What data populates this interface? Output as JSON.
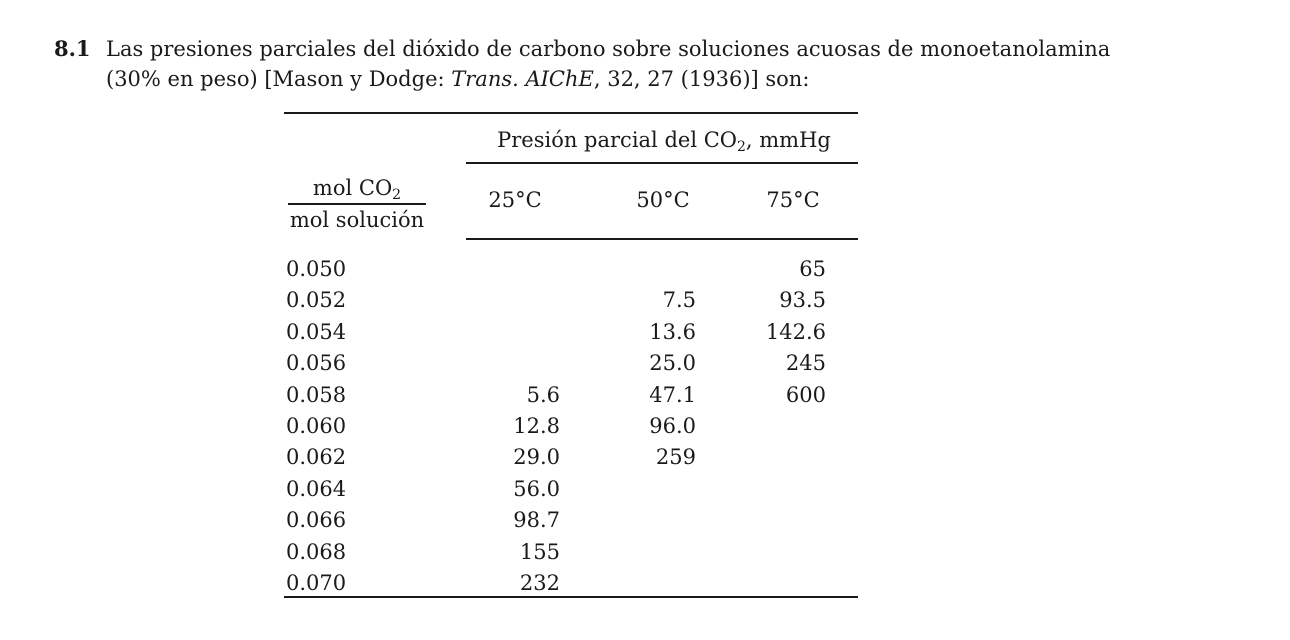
{
  "problem": {
    "number": "8.1",
    "line1": "Las presiones parciales del dióxido de carbono sobre soluciones acuosas de monoetanolamina",
    "line2_pre": "(30% en peso) [Mason y Dodge: ",
    "line2_italic": "Trans. AIChE",
    "line2_post": ", 32, 27 (1936)] son:"
  },
  "table": {
    "group_header_pre": "Presión parcial del CO",
    "group_header_sub": "2",
    "group_header_post": ", mmHg",
    "row_header_num_pre": "mol CO",
    "row_header_num_sub": "2",
    "row_header_den": "mol solución",
    "columns": [
      "25°C",
      "50°C",
      "75°C"
    ],
    "rows": [
      {
        "x": "0.050",
        "t25": "",
        "t50": "",
        "t75": "65"
      },
      {
        "x": "0.052",
        "t25": "",
        "t50": "7.5",
        "t75": "93.5"
      },
      {
        "x": "0.054",
        "t25": "",
        "t50": "13.6",
        "t75": "142.6"
      },
      {
        "x": "0.056",
        "t25": "",
        "t50": "25.0",
        "t75": "245"
      },
      {
        "x": "0.058",
        "t25": "5.6",
        "t50": "47.1",
        "t75": "600"
      },
      {
        "x": "0.060",
        "t25": "12.8",
        "t50": "96.0",
        "t75": ""
      },
      {
        "x": "0.062",
        "t25": "29.0",
        "t50": "259",
        "t75": ""
      },
      {
        "x": "0.064",
        "t25": "56.0",
        "t50": "",
        "t75": ""
      },
      {
        "x": "0.066",
        "t25": "98.7",
        "t50": "",
        "t75": ""
      },
      {
        "x": "0.068",
        "t25": "155",
        "t50": "",
        "t75": ""
      },
      {
        "x": "0.070",
        "t25": "232",
        "t50": "",
        "t75": ""
      }
    ]
  }
}
